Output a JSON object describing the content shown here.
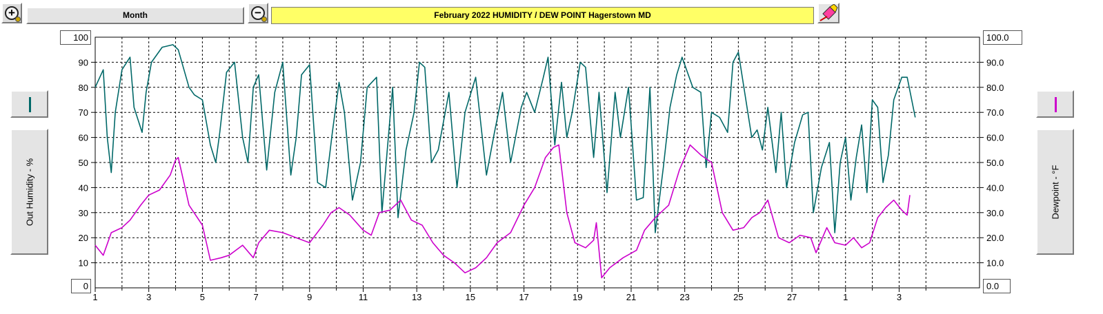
{
  "toolbar": {
    "zoom_in_icon": "+",
    "zoom_out_icon": "−",
    "period_label": "Month",
    "title": "February  2022   HUMIDITY / DEW POINT  Hagerstown MD",
    "erase_icon": "eraser-icon"
  },
  "legend": {
    "left_label": "Out Humidity - %",
    "right_label": "Dewpoint - °F",
    "left_color": "#006868",
    "right_color": "#cc00cc"
  },
  "chart_data": {
    "type": "line",
    "title": "February  2022   HUMIDITY / DEW POINT  Hagerstown MD",
    "x_tick_labels": [
      "1",
      "3",
      "5",
      "7",
      "9",
      "11",
      "13",
      "15",
      "17",
      "19",
      "21",
      "23",
      "25",
      "27",
      "1",
      "3"
    ],
    "xlim_days": [
      1,
      34
    ],
    "y_left": {
      "label": "Out Humidity - %",
      "range": [
        0,
        100
      ],
      "ticks": [
        10,
        20,
        30,
        40,
        50,
        60,
        70,
        80,
        90
      ],
      "top_label": "100",
      "bottom_label": "0"
    },
    "y_right": {
      "label": "Dewpoint - °F",
      "range": [
        0,
        100
      ],
      "ticks": [
        "10.0",
        "20.0",
        "30.0",
        "40.0",
        "50.0",
        "60.0",
        "70.0",
        "80.0",
        "90.0"
      ],
      "top_label": "100.0",
      "bottom_label": "0.0"
    },
    "grid": true,
    "series": [
      {
        "name": "Out Humidity - %",
        "color": "#006868",
        "axis": "left",
        "x": [
          1.0,
          1.3,
          1.45,
          1.6,
          1.75,
          2.0,
          2.3,
          2.45,
          2.75,
          2.9,
          3.1,
          3.5,
          3.9,
          4.1,
          4.5,
          4.7,
          5.0,
          5.3,
          5.5,
          5.65,
          5.9,
          6.2,
          6.5,
          6.7,
          6.9,
          7.1,
          7.4,
          7.7,
          8.0,
          8.3,
          8.5,
          8.7,
          9.0,
          9.3,
          9.6,
          9.85,
          10.1,
          10.3,
          10.6,
          10.9,
          11.15,
          11.5,
          11.7,
          11.9,
          12.1,
          12.3,
          12.6,
          12.9,
          13.1,
          13.3,
          13.55,
          13.8,
          14.2,
          14.5,
          14.8,
          15.2,
          15.6,
          15.9,
          16.2,
          16.5,
          16.9,
          17.1,
          17.4,
          17.7,
          17.9,
          18.15,
          18.4,
          18.6,
          18.8,
          19.1,
          19.3,
          19.6,
          19.8,
          20.1,
          20.4,
          20.6,
          20.9,
          21.2,
          21.45,
          21.7,
          21.9,
          22.2,
          22.45,
          22.7,
          22.9,
          23.3,
          23.6,
          23.8,
          24.0,
          24.3,
          24.6,
          24.8,
          25.0,
          25.5,
          25.7,
          25.9,
          26.1,
          26.4,
          26.6,
          26.8,
          27.1,
          27.4,
          27.6,
          27.8,
          28.1,
          28.4,
          28.6,
          28.8,
          29.0,
          29.2,
          29.4,
          29.6,
          29.8,
          30.0,
          30.2,
          30.4,
          30.6,
          30.8,
          31.1,
          31.3,
          31.6
        ],
        "y": [
          80,
          87,
          60,
          46,
          70,
          87,
          92,
          72,
          62,
          78,
          90,
          96,
          97,
          95,
          80,
          77,
          75,
          57,
          50,
          62,
          86,
          90,
          60,
          50,
          80,
          85,
          47,
          78,
          90,
          45,
          60,
          85,
          89,
          42,
          40,
          62,
          82,
          70,
          35,
          50,
          80,
          84,
          30,
          55,
          80,
          28,
          55,
          70,
          90,
          88,
          50,
          55,
          78,
          40,
          70,
          84,
          45,
          62,
          78,
          50,
          72,
          78,
          70,
          83,
          92,
          57,
          82,
          60,
          70,
          90,
          88,
          52,
          78,
          38,
          78,
          60,
          80,
          35,
          36,
          80,
          22,
          48,
          72,
          85,
          92,
          80,
          78,
          48,
          70,
          68,
          62,
          90,
          94,
          60,
          63,
          55,
          72,
          46,
          70,
          40,
          58,
          69,
          70,
          30,
          48,
          58,
          22,
          50,
          60,
          35,
          52,
          65,
          38,
          75,
          72,
          42,
          53,
          75,
          84,
          84,
          68
        ],
        "line_samples_note": "approximate trace"
      },
      {
        "name": "Dewpoint - °F",
        "color": "#cc00cc",
        "axis": "right",
        "x": [
          1.0,
          1.3,
          1.6,
          2.0,
          2.3,
          2.7,
          3.0,
          3.4,
          3.8,
          4.0,
          4.1,
          4.5,
          5.0,
          5.3,
          5.7,
          6.0,
          6.5,
          6.9,
          7.1,
          7.5,
          8.0,
          8.5,
          9.0,
          9.5,
          9.8,
          10.1,
          10.5,
          11.0,
          11.3,
          11.6,
          12.0,
          12.4,
          12.8,
          13.2,
          13.6,
          14.0,
          14.4,
          14.8,
          15.2,
          15.6,
          16.0,
          16.5,
          17.0,
          17.4,
          17.8,
          18.1,
          18.3,
          18.6,
          18.9,
          19.3,
          19.6,
          19.7,
          19.9,
          20.2,
          20.7,
          21.2,
          21.5,
          21.9,
          22.4,
          22.8,
          23.2,
          23.6,
          24.0,
          24.4,
          24.8,
          25.2,
          25.5,
          25.8,
          26.1,
          26.5,
          26.9,
          27.3,
          27.7,
          27.9,
          28.3,
          28.6,
          29.0,
          29.3,
          29.6,
          29.9,
          30.2,
          30.5,
          30.8,
          31.1,
          31.3,
          31.4
        ],
        "y": [
          17,
          13,
          22,
          24,
          27,
          33,
          37,
          39,
          45,
          51,
          52,
          33,
          25,
          11,
          12,
          13,
          17,
          12,
          18,
          23,
          22,
          20,
          18,
          25,
          30,
          32,
          29,
          23,
          21,
          30,
          31,
          35,
          27,
          25,
          18,
          13,
          10,
          6,
          8,
          12,
          18,
          22,
          33,
          40,
          52,
          56,
          57,
          30,
          18,
          16,
          19,
          26,
          4,
          8,
          12,
          15,
          23,
          28,
          33,
          47,
          57,
          53,
          50,
          30,
          23,
          24,
          28,
          30,
          35,
          20,
          18,
          21,
          20,
          14,
          24,
          18,
          17,
          20,
          16,
          18,
          28,
          32,
          35,
          31,
          29,
          37
        ]
      }
    ]
  }
}
